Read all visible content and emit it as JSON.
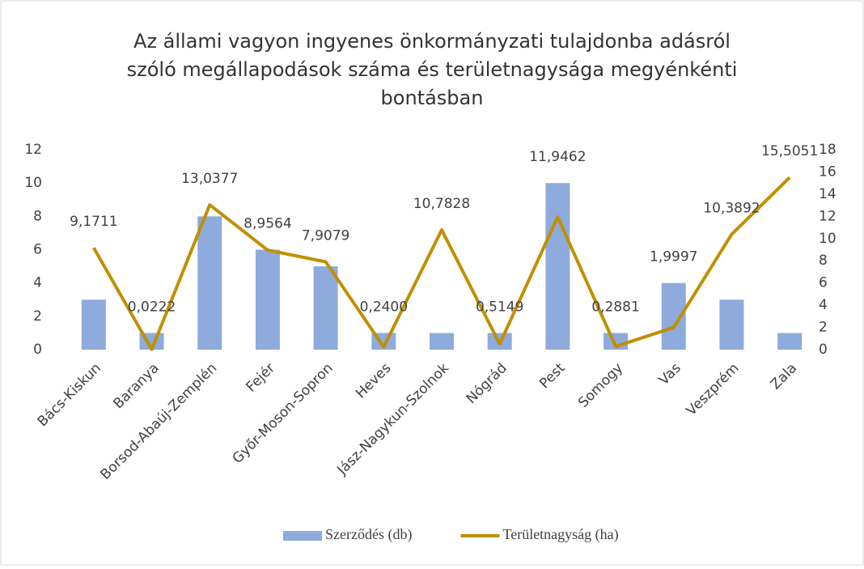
{
  "chart_data": {
    "type": "combo",
    "title": [
      "Az állami vagyon ingyenes önkormányzati tulajdonba adásról",
      "szóló megállapodások száma és területnagysága megyénkénti",
      "bontásban"
    ],
    "categories": [
      "Bács-Kiskun",
      "Baranya",
      "Borsod-Abaúj-Zemplén",
      "Fejér",
      "Győr-Moson-Sopron",
      "Heves",
      "Jász-Nagykun-Szolnok",
      "Nógrád",
      "Pest",
      "Somogy",
      "Vas",
      "Veszprém",
      "Zala"
    ],
    "series": [
      {
        "name": "Szerződés (db)",
        "type": "bar",
        "color": "#8faadc",
        "values": [
          3,
          1,
          8,
          6,
          5,
          1,
          1,
          1,
          10,
          1,
          4,
          3,
          1
        ]
      },
      {
        "name": "Területnagyság (ha)",
        "type": "line",
        "axis": "y2",
        "color": "#bf9000",
        "values": [
          9.1711,
          0.0222,
          13.0377,
          8.9564,
          7.9079,
          0.24,
          10.7828,
          0.5149,
          11.9462,
          0.2881,
          1.9997,
          10.3892,
          15.5051
        ],
        "value_labels": [
          "9,1711",
          "0,0222",
          "13,0377",
          "8,9564",
          "7,9079",
          "0,2400",
          "10,7828",
          "0,5149",
          "11,9462",
          "0,2881",
          "1,9997",
          "10,3892",
          "15,5051"
        ]
      }
    ],
    "ylim": [
      0,
      12
    ],
    "yticks": [
      0,
      2,
      4,
      6,
      8,
      10,
      12
    ],
    "y2lim": [
      0,
      18
    ],
    "y2ticks": [
      0,
      2,
      4,
      6,
      8,
      10,
      12,
      14,
      16,
      18
    ],
    "grid": false,
    "legend": "bottom"
  }
}
